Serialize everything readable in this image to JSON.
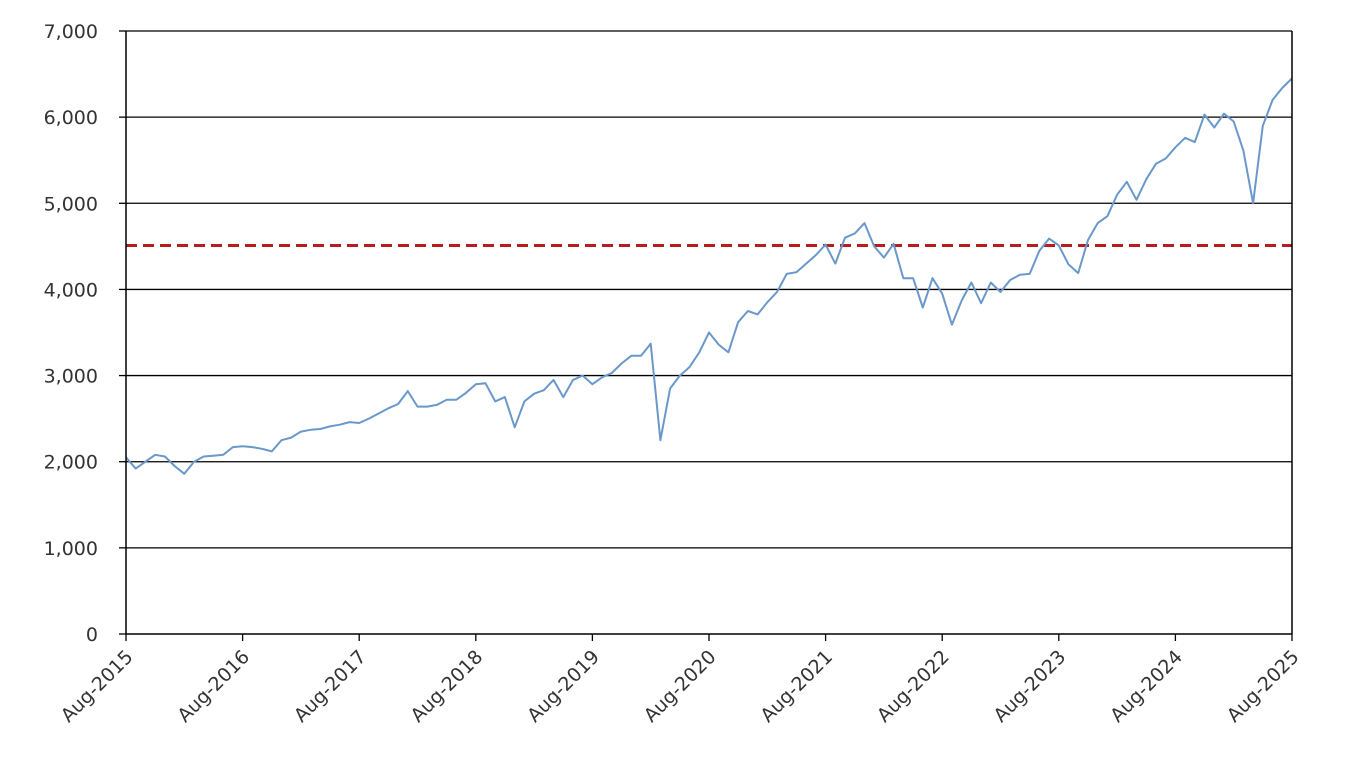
{
  "chart_data": {
    "type": "line",
    "title": "",
    "xlabel": "",
    "ylabel": "",
    "ylim": [
      0,
      7000
    ],
    "y_ticks": [
      {
        "value": 0,
        "label": "0"
      },
      {
        "value": 1000,
        "label": "1,000"
      },
      {
        "value": 2000,
        "label": "2,000"
      },
      {
        "value": 3000,
        "label": "3,000"
      },
      {
        "value": 4000,
        "label": "4,000"
      },
      {
        "value": 5000,
        "label": "5,000"
      },
      {
        "value": 6000,
        "label": "6,000"
      },
      {
        "value": 7000,
        "label": "7,000"
      }
    ],
    "x_ticks": [
      {
        "date": "2015-08",
        "label": "Aug-2015"
      },
      {
        "date": "2016-08",
        "label": "Aug-2016"
      },
      {
        "date": "2017-08",
        "label": "Aug-2017"
      },
      {
        "date": "2018-08",
        "label": "Aug-2018"
      },
      {
        "date": "2019-08",
        "label": "Aug-2019"
      },
      {
        "date": "2020-08",
        "label": "Aug-2020"
      },
      {
        "date": "2021-08",
        "label": "Aug-2021"
      },
      {
        "date": "2022-08",
        "label": "Aug-2022"
      },
      {
        "date": "2023-08",
        "label": "Aug-2023"
      },
      {
        "date": "2024-08",
        "label": "Aug-2024"
      },
      {
        "date": "2025-08",
        "label": "Aug-2025"
      }
    ],
    "grid": "horizontal",
    "legend": "none",
    "series": [
      {
        "color": "#6a98cb",
        "points": [
          [
            "2015-08",
            2050
          ],
          [
            "2015-09",
            1920
          ],
          [
            "2015-10",
            2000
          ],
          [
            "2015-11",
            2080
          ],
          [
            "2015-12",
            2060
          ],
          [
            "2016-01",
            1950
          ],
          [
            "2016-02",
            1860
          ],
          [
            "2016-03",
            2000
          ],
          [
            "2016-04",
            2060
          ],
          [
            "2016-05",
            2070
          ],
          [
            "2016-06",
            2080
          ],
          [
            "2016-07",
            2170
          ],
          [
            "2016-08",
            2180
          ],
          [
            "2016-09",
            2170
          ],
          [
            "2016-10",
            2150
          ],
          [
            "2016-11",
            2120
          ],
          [
            "2016-12",
            2250
          ],
          [
            "2017-01",
            2280
          ],
          [
            "2017-02",
            2350
          ],
          [
            "2017-03",
            2370
          ],
          [
            "2017-04",
            2380
          ],
          [
            "2017-05",
            2410
          ],
          [
            "2017-06",
            2430
          ],
          [
            "2017-07",
            2460
          ],
          [
            "2017-08",
            2450
          ],
          [
            "2017-09",
            2500
          ],
          [
            "2017-10",
            2560
          ],
          [
            "2017-11",
            2620
          ],
          [
            "2017-12",
            2670
          ],
          [
            "2018-01",
            2820
          ],
          [
            "2018-02",
            2640
          ],
          [
            "2018-03",
            2640
          ],
          [
            "2018-04",
            2660
          ],
          [
            "2018-05",
            2720
          ],
          [
            "2018-06",
            2720
          ],
          [
            "2018-07",
            2800
          ],
          [
            "2018-08",
            2900
          ],
          [
            "2018-09",
            2910
          ],
          [
            "2018-10",
            2700
          ],
          [
            "2018-11",
            2750
          ],
          [
            "2018-12",
            2400
          ],
          [
            "2019-01",
            2700
          ],
          [
            "2019-02",
            2790
          ],
          [
            "2019-03",
            2830
          ],
          [
            "2019-04",
            2950
          ],
          [
            "2019-05",
            2750
          ],
          [
            "2019-06",
            2950
          ],
          [
            "2019-07",
            3000
          ],
          [
            "2019-08",
            2900
          ],
          [
            "2019-09",
            2980
          ],
          [
            "2019-10",
            3030
          ],
          [
            "2019-11",
            3140
          ],
          [
            "2019-12",
            3230
          ],
          [
            "2020-01",
            3230
          ],
          [
            "2020-02",
            3370
          ],
          [
            "2020-03",
            2250
          ],
          [
            "2020-04",
            2850
          ],
          [
            "2020-05",
            3000
          ],
          [
            "2020-06",
            3100
          ],
          [
            "2020-07",
            3270
          ],
          [
            "2020-08",
            3500
          ],
          [
            "2020-09",
            3360
          ],
          [
            "2020-10",
            3270
          ],
          [
            "2020-11",
            3620
          ],
          [
            "2020-12",
            3750
          ],
          [
            "2021-01",
            3710
          ],
          [
            "2021-02",
            3850
          ],
          [
            "2021-03",
            3970
          ],
          [
            "2021-04",
            4180
          ],
          [
            "2021-05",
            4200
          ],
          [
            "2021-06",
            4300
          ],
          [
            "2021-07",
            4400
          ],
          [
            "2021-08",
            4520
          ],
          [
            "2021-09",
            4300
          ],
          [
            "2021-10",
            4600
          ],
          [
            "2021-11",
            4650
          ],
          [
            "2021-12",
            4770
          ],
          [
            "2022-01",
            4500
          ],
          [
            "2022-02",
            4370
          ],
          [
            "2022-03",
            4530
          ],
          [
            "2022-04",
            4130
          ],
          [
            "2022-05",
            4130
          ],
          [
            "2022-06",
            3790
          ],
          [
            "2022-07",
            4130
          ],
          [
            "2022-08",
            3950
          ],
          [
            "2022-09",
            3590
          ],
          [
            "2022-10",
            3870
          ],
          [
            "2022-11",
            4080
          ],
          [
            "2022-12",
            3840
          ],
          [
            "2023-01",
            4080
          ],
          [
            "2023-02",
            3970
          ],
          [
            "2023-03",
            4110
          ],
          [
            "2023-04",
            4170
          ],
          [
            "2023-05",
            4180
          ],
          [
            "2023-06",
            4450
          ],
          [
            "2023-07",
            4590
          ],
          [
            "2023-08",
            4510
          ],
          [
            "2023-09",
            4290
          ],
          [
            "2023-10",
            4190
          ],
          [
            "2023-11",
            4570
          ],
          [
            "2023-12",
            4770
          ],
          [
            "2024-01",
            4850
          ],
          [
            "2024-02",
            5100
          ],
          [
            "2024-03",
            5250
          ],
          [
            "2024-04",
            5040
          ],
          [
            "2024-05",
            5280
          ],
          [
            "2024-06",
            5460
          ],
          [
            "2024-07",
            5520
          ],
          [
            "2024-08",
            5650
          ],
          [
            "2024-09",
            5760
          ],
          [
            "2024-10",
            5710
          ],
          [
            "2024-11",
            6030
          ],
          [
            "2024-12",
            5880
          ],
          [
            "2025-01",
            6040
          ],
          [
            "2025-02",
            5950
          ],
          [
            "2025-03",
            5610
          ],
          [
            "2025-04",
            5000
          ],
          [
            "2025-05",
            5900
          ],
          [
            "2025-06",
            6200
          ],
          [
            "2025-07",
            6340
          ],
          [
            "2025-08",
            6450
          ]
        ]
      }
    ],
    "reference_lines": [
      {
        "value": 4510,
        "color": "#b81c1c",
        "style": "dashed"
      }
    ]
  }
}
